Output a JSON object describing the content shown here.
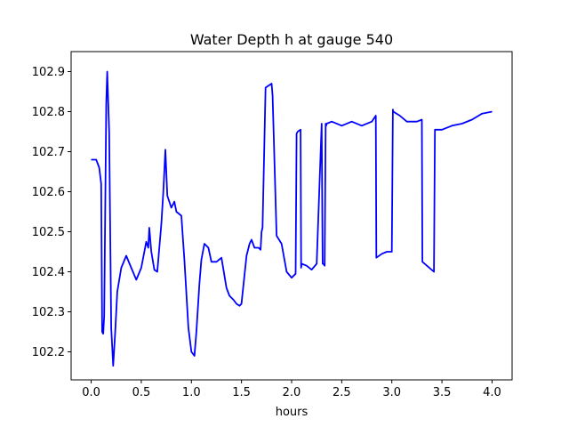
{
  "chart_data": {
    "type": "line",
    "title": "Water Depth h at gauge 540",
    "xlabel": "hours",
    "ylabel": "",
    "xlim": [
      -0.2,
      4.2
    ],
    "ylim": [
      102.13,
      102.95
    ],
    "xticks": [
      0.0,
      0.5,
      1.0,
      1.5,
      2.0,
      2.5,
      3.0,
      3.5,
      4.0
    ],
    "xtick_labels": [
      "0.0",
      "0.5",
      "1.0",
      "1.5",
      "2.0",
      "2.5",
      "3.0",
      "3.5",
      "4.0"
    ],
    "yticks": [
      102.2,
      102.3,
      102.4,
      102.5,
      102.6,
      102.7,
      102.8,
      102.9
    ],
    "ytick_labels": [
      "102.2",
      "102.3",
      "102.4",
      "102.5",
      "102.6",
      "102.7",
      "102.8",
      "102.9"
    ],
    "grid": false,
    "series": [
      {
        "color": "#0000ff",
        "x": [
          0.0,
          0.05,
          0.08,
          0.1,
          0.11,
          0.12,
          0.13,
          0.15,
          0.16,
          0.18,
          0.2,
          0.22,
          0.24,
          0.26,
          0.3,
          0.35,
          0.4,
          0.45,
          0.5,
          0.55,
          0.57,
          0.58,
          0.6,
          0.63,
          0.66,
          0.7,
          0.72,
          0.74,
          0.76,
          0.8,
          0.83,
          0.85,
          0.9,
          0.93,
          0.97,
          1.0,
          1.03,
          1.05,
          1.08,
          1.1,
          1.13,
          1.17,
          1.2,
          1.25,
          1.3,
          1.35,
          1.38,
          1.42,
          1.45,
          1.48,
          1.5,
          1.55,
          1.58,
          1.6,
          1.63,
          1.67,
          1.69,
          1.7,
          1.71,
          1.74,
          1.8,
          1.81,
          1.85,
          1.9,
          1.95,
          2.0,
          2.04,
          2.05,
          2.06,
          2.09,
          2.095,
          2.1,
          2.15,
          2.2,
          2.25,
          2.3,
          2.31,
          2.315,
          2.33,
          2.34,
          2.345,
          2.35,
          2.4,
          2.5,
          2.6,
          2.7,
          2.8,
          2.84,
          2.845,
          2.9,
          2.95,
          3.0,
          3.01,
          3.015,
          3.08,
          3.15,
          3.25,
          3.3,
          3.305,
          3.35,
          3.42,
          3.43,
          3.435,
          3.5,
          3.6,
          3.7,
          3.8,
          3.9,
          4.0
        ],
        "y": [
          102.68,
          102.68,
          102.66,
          102.62,
          102.25,
          102.245,
          102.29,
          102.82,
          102.9,
          102.75,
          102.26,
          102.165,
          102.25,
          102.35,
          102.41,
          102.44,
          102.41,
          102.38,
          102.41,
          102.475,
          102.46,
          102.51,
          102.45,
          102.405,
          102.4,
          102.52,
          102.6,
          102.705,
          102.59,
          102.56,
          102.575,
          102.55,
          102.54,
          102.43,
          102.26,
          102.2,
          102.19,
          102.25,
          102.37,
          102.43,
          102.47,
          102.46,
          102.425,
          102.425,
          102.435,
          102.36,
          102.34,
          102.33,
          102.32,
          102.315,
          102.32,
          102.44,
          102.47,
          102.48,
          102.46,
          102.46,
          102.455,
          102.5,
          102.51,
          102.86,
          102.87,
          102.84,
          102.49,
          102.47,
          102.4,
          102.385,
          102.395,
          102.745,
          102.75,
          102.755,
          102.41,
          102.42,
          102.415,
          102.405,
          102.42,
          102.77,
          102.42,
          102.42,
          102.415,
          102.77,
          102.765,
          102.77,
          102.775,
          102.765,
          102.775,
          102.765,
          102.775,
          102.79,
          102.435,
          102.445,
          102.45,
          102.45,
          102.805,
          102.8,
          102.79,
          102.775,
          102.775,
          102.78,
          102.425,
          102.415,
          102.4,
          102.755,
          102.755,
          102.755,
          102.765,
          102.77,
          102.78,
          102.795,
          102.8
        ]
      }
    ]
  }
}
